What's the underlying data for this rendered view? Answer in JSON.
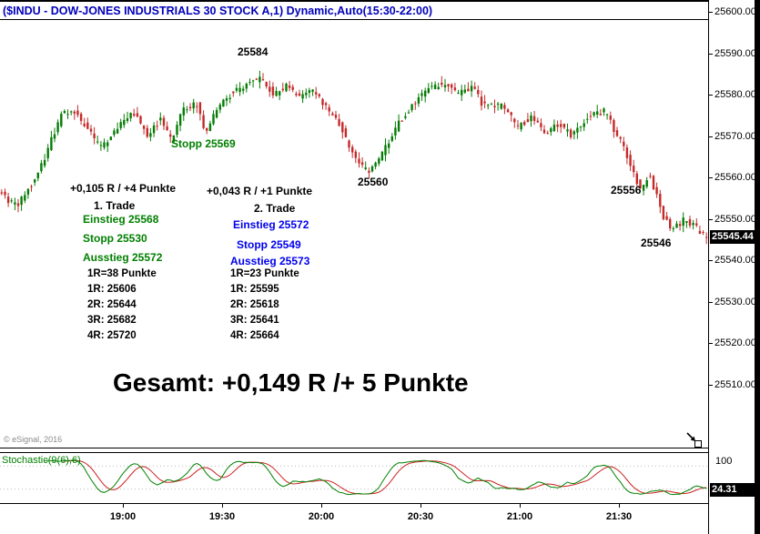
{
  "window": {
    "title": "($INDU - DOW-JONES INDUSTRIALS 30 STOCK A,1) Dynamic,Auto(15:30-22:00)"
  },
  "colors": {
    "title_text": "#0000bb",
    "bull": "#067c06",
    "bear": "#c42a2a",
    "trade1_text": "#008000",
    "trade2_text": "#0000ee",
    "stoch_k": "#008000",
    "stoch_d": "#cc2222",
    "last_price_bg": "#000000",
    "last_price_text": "#ffffff"
  },
  "price_axis": {
    "ticks_visible": [
      "25600.00",
      "25590.00",
      "25580.00",
      "25570.00",
      "25560.00",
      "25550.00",
      "25540.00",
      "25530.00",
      "25520.00",
      "25510.00"
    ],
    "last_price_label": "25545.44"
  },
  "indicator_axis": {
    "top_label": "100",
    "value_label": "24.31"
  },
  "time_axis": [
    "19:00",
    "19:30",
    "20:00",
    "20:30",
    "21:00",
    "21:30"
  ],
  "annotations": {
    "swing_high": "25584",
    "stopp_note": "Stopp 25569",
    "swing_low": "25560",
    "swing_556": "25556",
    "swing_546": "25546",
    "gesamt": "Gesamt: +0,149 R /+ 5 Punkte",
    "copyright": "© eSignal, 2016",
    "indicator_label": "Stochastic(9(6),6)",
    "trade1": {
      "result": "+0,105 R / +4 Punkte",
      "title": "1. Trade",
      "einstieg": "Einstieg 25568",
      "stopp": "Stopp 25530",
      "ausstieg": "Ausstieg 25572",
      "r_info": "1R=38 Punkte",
      "targets": [
        "1R: 25606",
        "2R: 25644",
        "3R: 25682",
        "4R: 25720"
      ]
    },
    "trade2": {
      "result": "+0,043 R / +1 Punkte",
      "title": "2. Trade",
      "einstieg": "Einstieg 25572",
      "stopp": "Stopp 25549",
      "ausstieg": "Ausstieg 25573",
      "r_info": "1R=23 Punkte",
      "targets": [
        "1R: 25595",
        "2R: 25618",
        "3R: 25641",
        "4R: 25664"
      ]
    }
  },
  "chart_data": {
    "type": "candlestick",
    "symbol": "$INDU",
    "description": "DOW-JONES INDUSTRIALS 30 STOCK",
    "interval_minutes": 1,
    "session": "15:30-22:00",
    "visible_time_start": "18:23",
    "visible_time_end": "21:57",
    "ylim": [
      25492,
      25603
    ],
    "y_ticks": [
      25600,
      25590,
      25580,
      25570,
      25560,
      25550,
      25540,
      25530,
      25520,
      25510
    ],
    "x_tick_labels": [
      "19:00",
      "19:30",
      "20:00",
      "20:30",
      "21:00",
      "21:30"
    ],
    "first_tick_minute": 37,
    "tick_interval_minutes": 30,
    "n_candles": 214,
    "last_price": 25545.44,
    "price_path": [
      [
        0.0,
        25556
      ],
      [
        0.02,
        25553
      ],
      [
        0.05,
        25560
      ],
      [
        0.084,
        25575
      ],
      [
        0.103,
        25576
      ],
      [
        0.141,
        25567
      ],
      [
        0.167,
        25573
      ],
      [
        0.186,
        25576
      ],
      [
        0.206,
        25570
      ],
      [
        0.225,
        25574
      ],
      [
        0.24,
        25569
      ],
      [
        0.257,
        25576
      ],
      [
        0.276,
        25578
      ],
      [
        0.289,
        25571
      ],
      [
        0.315,
        25579
      ],
      [
        0.334,
        25581
      ],
      [
        0.366,
        25584
      ],
      [
        0.386,
        25580
      ],
      [
        0.405,
        25582
      ],
      [
        0.424,
        25579
      ],
      [
        0.443,
        25581
      ],
      [
        0.463,
        25576
      ],
      [
        0.482,
        25572
      ],
      [
        0.495,
        25566
      ],
      [
        0.52,
        25561
      ],
      [
        0.54,
        25566
      ],
      [
        0.559,
        25572
      ],
      [
        0.585,
        25578
      ],
      [
        0.604,
        25581
      ],
      [
        0.63,
        25583
      ],
      [
        0.649,
        25580
      ],
      [
        0.668,
        25582
      ],
      [
        0.681,
        25578
      ],
      [
        0.713,
        25577
      ],
      [
        0.733,
        25572
      ],
      [
        0.752,
        25575
      ],
      [
        0.771,
        25570
      ],
      [
        0.79,
        25573
      ],
      [
        0.81,
        25570
      ],
      [
        0.835,
        25575
      ],
      [
        0.855,
        25576
      ],
      [
        0.874,
        25570
      ],
      [
        0.893,
        25563
      ],
      [
        0.906,
        25557
      ],
      [
        0.919,
        25561
      ],
      [
        0.938,
        25551
      ],
      [
        0.951,
        25547
      ],
      [
        0.97,
        25550
      ],
      [
        0.99,
        25547
      ],
      [
        1.0,
        25545.44
      ]
    ],
    "key_points": {
      "session_high": 25584,
      "mid_low": 25560,
      "late_swing": 25556,
      "late_low": 25546,
      "last": 25545.44
    },
    "indicator": {
      "type": "stochastic",
      "label": "Stochastic(9(6),6)",
      "scale": [
        0,
        100
      ],
      "last_value": 24.31,
      "k_color": "#008000",
      "d_color": "#cc2222"
    }
  }
}
